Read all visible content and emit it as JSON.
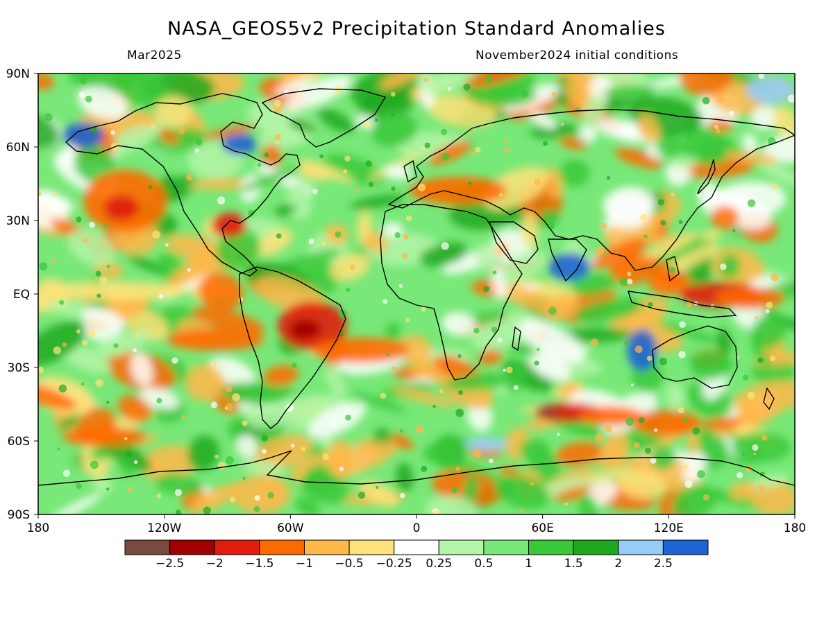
{
  "header": {
    "title": "NASA_GEOS5v2 Precipitation Standard Anomalies",
    "valid_month": "Mar2025",
    "init_conditions": "November2024 initial conditions"
  },
  "map": {
    "lat_ticks": [
      "90N",
      "60N",
      "30N",
      "EQ",
      "30S",
      "60S",
      "90S"
    ],
    "lon_ticks": [
      "180",
      "120W",
      "60W",
      "0",
      "60E",
      "120E",
      "180"
    ]
  },
  "colorbar": {
    "colors": [
      "#7b4a3f",
      "#a00000",
      "#e01c0c",
      "#ff6a00",
      "#ffb74a",
      "#ffe27a",
      "#ffffff",
      "#b4f5a8",
      "#78e878",
      "#38c838",
      "#1ea81e",
      "#96cdf5",
      "#1e64d2"
    ],
    "labels": [
      "-2.5",
      "-2",
      "-1.5",
      "-1",
      "-0.5",
      "-0.25",
      "0.25",
      "0.5",
      "1",
      "1.5",
      "2",
      "2.5"
    ]
  }
}
